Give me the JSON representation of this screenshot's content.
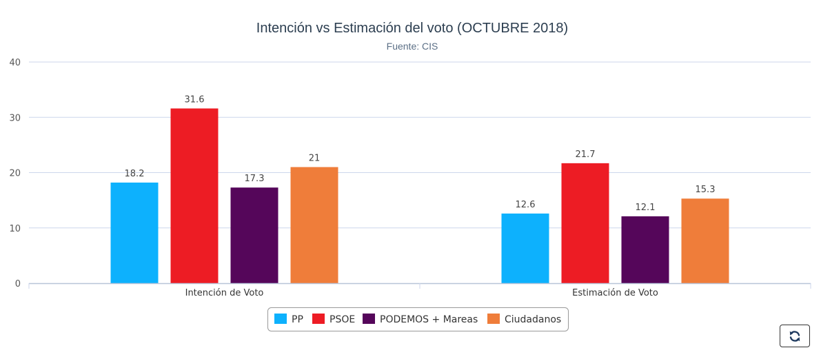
{
  "chart_data": {
    "type": "bar",
    "title": "Intención vs Estimación del voto (OCTUBRE 2018)",
    "subtitle": "Fuente: CIS",
    "categories": [
      "Intención de Voto",
      "Estimación de Voto"
    ],
    "series": [
      {
        "name": "PP",
        "color": "#0db1fd",
        "values": [
          18.2,
          12.6
        ],
        "labels": [
          "18.2",
          "12.6"
        ]
      },
      {
        "name": "PSOE",
        "color": "#ed1c24",
        "values": [
          31.6,
          21.7
        ],
        "labels": [
          "31.6",
          "21.7"
        ]
      },
      {
        "name": "PODEMOS + Mareas",
        "color": "#55065a",
        "values": [
          17.3,
          12.1
        ],
        "labels": [
          "17.3",
          "12.1"
        ]
      },
      {
        "name": "Ciudadanos",
        "color": "#ef7d3a",
        "values": [
          21,
          15.3
        ],
        "labels": [
          "21",
          "15.3"
        ]
      }
    ],
    "ylim": [
      0,
      40
    ],
    "yticks": [
      "0",
      "10",
      "20",
      "30",
      "40"
    ],
    "grid": true,
    "legend": "bottom-center"
  },
  "toolbar": {
    "refresh_icon": "refresh-icon"
  }
}
